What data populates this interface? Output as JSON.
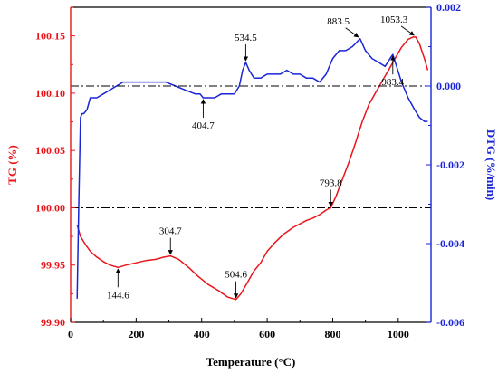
{
  "colors": {
    "tg": "#e8151b",
    "dtg": "#1a25d6",
    "axis": "#000000",
    "refline": "#000000"
  },
  "chart_data": {
    "type": "line",
    "title": "",
    "xlabel": "Temperature (°C)",
    "xlim": [
      0,
      1100
    ],
    "x_ticks": [
      0,
      200,
      400,
      600,
      800,
      1000
    ],
    "grid": false,
    "legend": "none",
    "y_left": {
      "label": "TG (%)",
      "lim": [
        99.9,
        100.175
      ],
      "ticks": [
        99.9,
        99.95,
        100.0,
        100.05,
        100.1,
        100.15
      ],
      "tick_labels": [
        "99.90",
        "99.95",
        "100.00",
        "100.05",
        "100.10",
        "100.15"
      ]
    },
    "y_right": {
      "label": "DTG (%/min)",
      "lim": [
        -0.006,
        0.002
      ],
      "ticks": [
        -0.006,
        -0.004,
        -0.002,
        0.0,
        0.002
      ],
      "tick_labels": [
        "-0.006",
        "-0.004",
        "-0.002",
        "0.000",
        "0.002"
      ]
    },
    "series": [
      {
        "axis": "left",
        "color": "#e8151b",
        "x": [
          20,
          30,
          45,
          60,
          80,
          100,
          120,
          144.6,
          170,
          200,
          230,
          260,
          285,
          304.7,
          330,
          360,
          390,
          420,
          450,
          480,
          504.6,
          520,
          540,
          560,
          580,
          600,
          625,
          650,
          680,
          700,
          720,
          740,
          760,
          780,
          793.8,
          810,
          830,
          850,
          870,
          890,
          910,
          930,
          950,
          970,
          990,
          1010,
          1030,
          1045,
          1053.3,
          1065,
          1080,
          1090
        ],
        "values": [
          99.985,
          99.975,
          99.968,
          99.962,
          99.957,
          99.953,
          99.95,
          99.948,
          99.95,
          99.952,
          99.954,
          99.955,
          99.957,
          99.958,
          99.955,
          99.948,
          99.94,
          99.933,
          99.928,
          99.922,
          99.92,
          99.925,
          99.935,
          99.945,
          99.952,
          99.962,
          99.97,
          99.977,
          99.983,
          99.986,
          99.989,
          99.991,
          99.994,
          99.998,
          100.0,
          100.01,
          100.025,
          100.04,
          100.057,
          100.075,
          100.09,
          100.1,
          100.11,
          100.12,
          100.13,
          100.14,
          100.147,
          100.149,
          100.149,
          100.143,
          100.13,
          100.12
        ]
      },
      {
        "axis": "right",
        "color": "#1a25d6",
        "x": [
          20,
          25,
          30,
          35,
          40,
          50,
          60,
          70,
          80,
          100,
          120,
          140,
          160,
          180,
          200,
          230,
          260,
          290,
          320,
          350,
          380,
          395,
          404.7,
          420,
          440,
          460,
          480,
          500,
          515,
          525,
          534.5,
          545,
          560,
          580,
          600,
          620,
          640,
          660,
          680,
          700,
          720,
          740,
          760,
          780,
          800,
          820,
          840,
          860,
          883.5,
          900,
          920,
          940,
          960,
          975,
          983.4,
          995,
          1010,
          1030,
          1050,
          1065,
          1080,
          1090
        ],
        "values": [
          -0.0054,
          -0.003,
          -0.0008,
          -0.0007,
          -0.0007,
          -0.0006,
          -0.0003,
          -0.0003,
          -0.0003,
          -0.0002,
          -0.0001,
          0.0,
          0.0001,
          0.0001,
          0.0001,
          0.0001,
          0.0001,
          0.0001,
          0.0,
          -0.0001,
          -0.0002,
          -0.0002,
          -0.0003,
          -0.0003,
          -0.0003,
          -0.0002,
          -0.0002,
          -0.0002,
          0.0,
          0.0004,
          0.0006,
          0.0004,
          0.0002,
          0.0002,
          0.0003,
          0.0003,
          0.0003,
          0.0004,
          0.0003,
          0.0003,
          0.0002,
          0.0002,
          0.0001,
          0.0003,
          0.0007,
          0.0009,
          0.0009,
          0.001,
          0.0012,
          0.0009,
          0.0007,
          0.0006,
          0.0005,
          0.0007,
          0.0008,
          0.0005,
          0.0001,
          -0.0003,
          -0.0006,
          -0.0008,
          -0.0009,
          -0.0009
        ]
      }
    ],
    "reference_lines": [
      {
        "axis": "left",
        "value": 100.0,
        "style": "dash-dot"
      },
      {
        "axis": "right",
        "value": 0.0,
        "style": "dash-dot"
      }
    ],
    "annotations": [
      {
        "series": 0,
        "x": 144.6,
        "y": 99.948,
        "text": "144.6",
        "arrow": "up",
        "label_pos": "below"
      },
      {
        "series": 0,
        "x": 304.7,
        "y": 99.958,
        "text": "304.7",
        "arrow": "down",
        "label_pos": "above"
      },
      {
        "series": 0,
        "x": 504.6,
        "y": 99.92,
        "text": "504.6",
        "arrow": "down",
        "label_pos": "above"
      },
      {
        "series": 0,
        "x": 793.8,
        "y": 100.0,
        "text": "793.8",
        "arrow": "down",
        "label_pos": "above"
      },
      {
        "series": 0,
        "x": 1053.3,
        "y": 100.149,
        "text": "1053.3",
        "arrow": "diag",
        "label_pos": "above-left"
      },
      {
        "series": 1,
        "x": 404.7,
        "y": -0.0003,
        "text": "404.7",
        "arrow": "up",
        "label_pos": "below"
      },
      {
        "series": 1,
        "x": 534.5,
        "y": 0.0006,
        "text": "534.5",
        "arrow": "down",
        "label_pos": "above"
      },
      {
        "series": 1,
        "x": 883.5,
        "y": 0.0012,
        "text": "883.5",
        "arrow": "diag",
        "label_pos": "above-left"
      },
      {
        "series": 1,
        "x": 983.4,
        "y": 0.0008,
        "text": "983.4",
        "arrow": "up",
        "label_pos": "below"
      }
    ]
  }
}
